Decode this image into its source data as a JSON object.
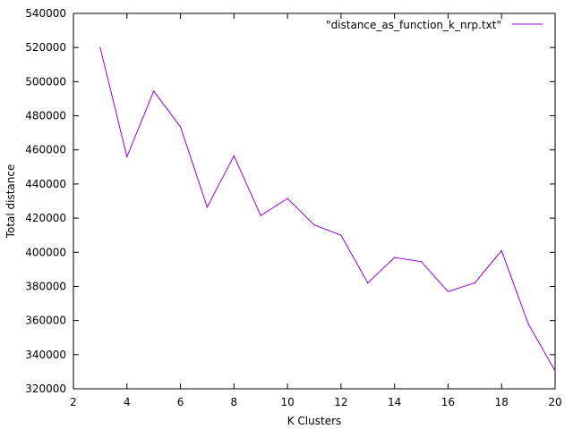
{
  "chart_data": {
    "type": "line",
    "xlabel": "K Clusters",
    "ylabel": "Total distance",
    "xlim": [
      2,
      20
    ],
    "ylim": [
      320000,
      540000
    ],
    "xticks": [
      2,
      4,
      6,
      8,
      10,
      12,
      14,
      16,
      18,
      20
    ],
    "yticks": [
      320000,
      340000,
      360000,
      380000,
      400000,
      420000,
      440000,
      460000,
      480000,
      500000,
      520000,
      540000
    ],
    "grid": false,
    "legend_position": "top-right",
    "series": [
      {
        "name": "\"distance_as_function_k_nrp.txt\"",
        "color": "#9400d3",
        "x": [
          3,
          4,
          5,
          6,
          7,
          8,
          9,
          10,
          11,
          12,
          13,
          14,
          15,
          16,
          17,
          18,
          19,
          20
        ],
        "y": [
          520000,
          456000,
          494500,
          473500,
          426500,
          456500,
          421500,
          431500,
          416000,
          410000,
          382000,
          397000,
          394500,
          377000,
          382000,
          401000,
          358000,
          330500
        ]
      }
    ]
  }
}
